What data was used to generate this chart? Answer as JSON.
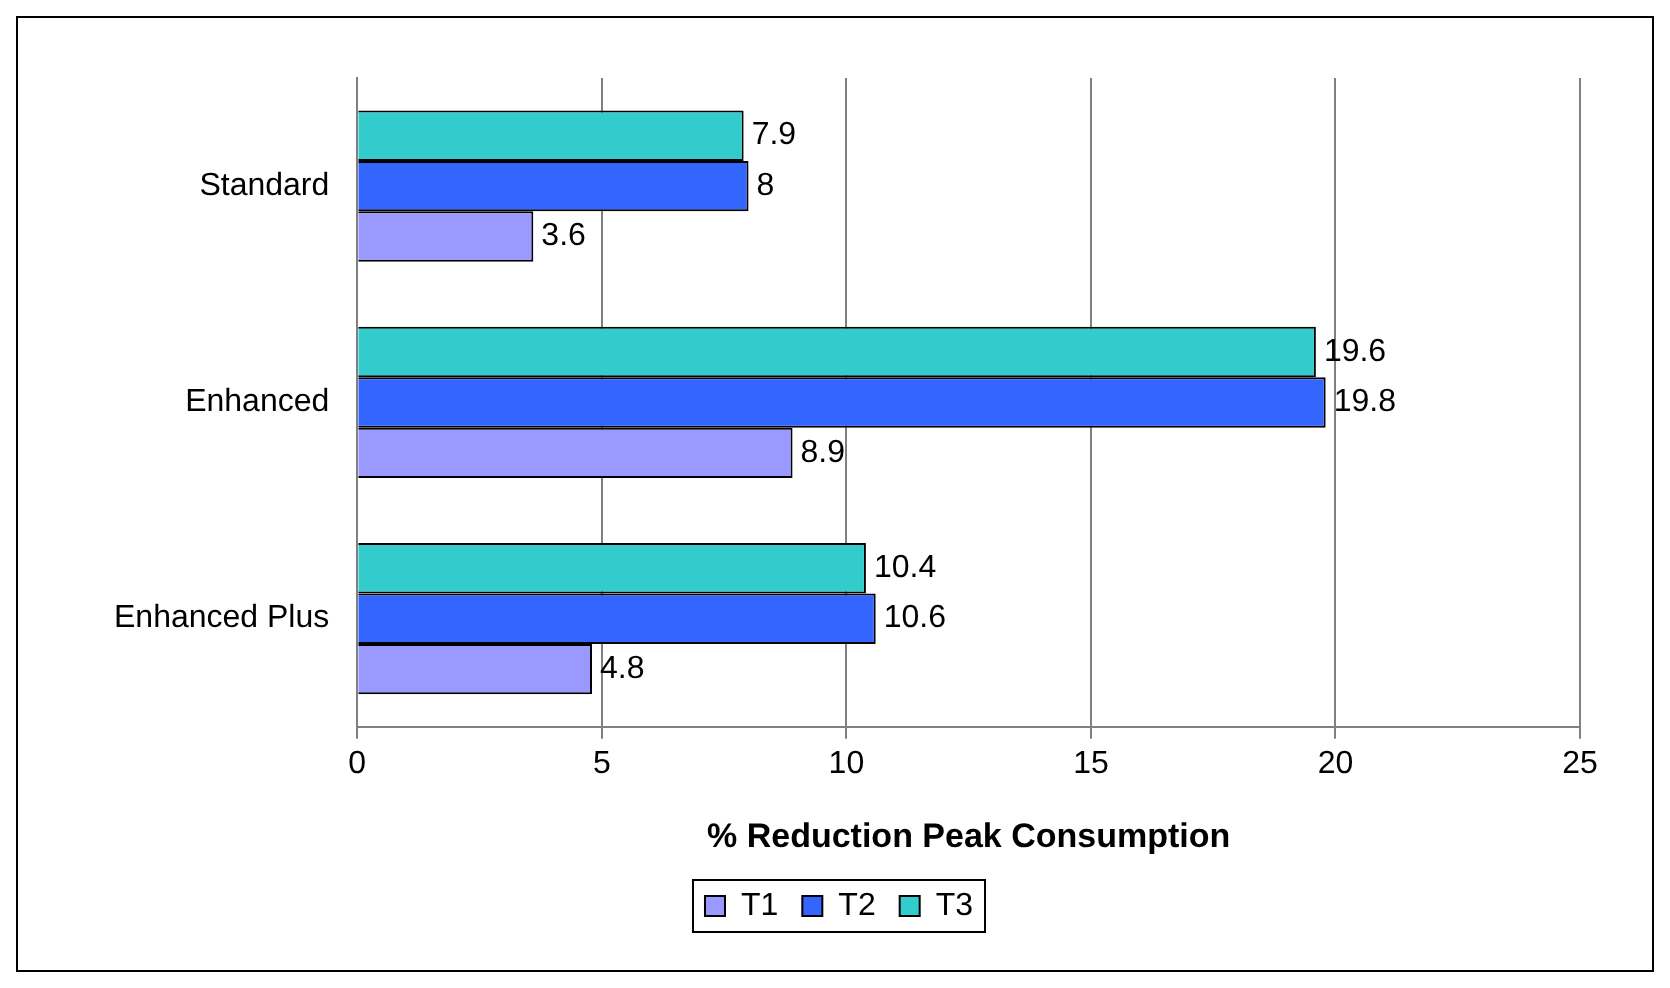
{
  "chart_data": {
    "type": "bar",
    "orientation": "horizontal",
    "xlabel": "% Reduction Peak Consumption",
    "categories": [
      "Standard",
      "Enhanced",
      "Enhanced Plus"
    ],
    "series": [
      {
        "name": "T1",
        "color": "#9999ff",
        "values": [
          3.6,
          8.9,
          4.8
        ]
      },
      {
        "name": "T2",
        "color": "#3366ff",
        "values": [
          8,
          19.8,
          10.6
        ]
      },
      {
        "name": "T3",
        "color": "#33cccc",
        "values": [
          7.9,
          19.6,
          10.4
        ]
      }
    ],
    "xlim": [
      0,
      25
    ],
    "xticks": [
      0,
      5,
      10,
      15,
      20,
      25
    ],
    "grid": "x",
    "legend": "bottom",
    "data_labels": true
  }
}
